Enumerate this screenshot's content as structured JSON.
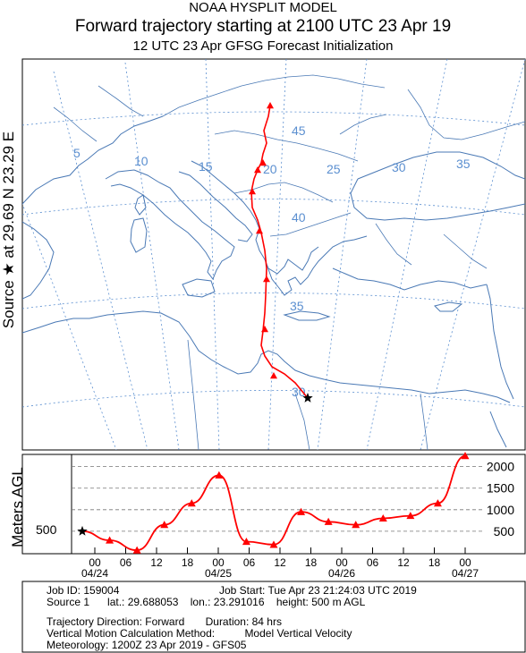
{
  "header": {
    "line1": "NOAA HYSPLIT MODEL",
    "line2": "Forward trajectory starting at 2100 UTC 23 Apr 19",
    "line3": "12 UTC 23 Apr    GFSG  Forecast Initialization"
  },
  "side_label": "Source ★  at   29.69 N   23.29 E",
  "altitude_axis_label": "Meters AGL",
  "map": {
    "longitude_labels": [
      "5",
      "10",
      "15",
      "20",
      "25",
      "30",
      "35"
    ],
    "latitude_labels": [
      "45",
      "40",
      "35",
      "30"
    ],
    "colors": {
      "trajectory": "#ff0000",
      "graticule": "#5b8fd0",
      "coastline": "#4a79b5"
    }
  },
  "chart_data": {
    "type": "line",
    "title": "",
    "xlabel": "",
    "ylabel": "Meters AGL",
    "source_height_label": "500",
    "y_tick_labels": [
      "2000",
      "1500",
      "1000",
      "500"
    ],
    "ylim": [
      0,
      2200
    ],
    "x_tick_labels": [
      "00",
      "06",
      "12",
      "18",
      "00",
      "06",
      "12",
      "18",
      "00",
      "06",
      "12",
      "18",
      "00"
    ],
    "date_labels": [
      "04/24",
      "04/25",
      "04/26",
      "04/27"
    ],
    "series": [
      {
        "hours_after_start": [
          0,
          6,
          12,
          18,
          24,
          30,
          36,
          42,
          48,
          54,
          60,
          66,
          72,
          78,
          84
        ],
        "height_m_agl": [
          500,
          290,
          60,
          650,
          1150,
          1800,
          260,
          190,
          950,
          720,
          650,
          800,
          860,
          1150,
          2250
        ]
      }
    ],
    "start_marker": "star",
    "hourly_marker": "triangle"
  },
  "info": {
    "job_id": "Job ID: 159004",
    "job_start": "Job Start: Tue Apr 23 21:24:03 UTC 2019",
    "source": "Source 1      lat.: 29.688053    lon.: 23.291016    height: 500 m AGL",
    "direction": "Trajectory Direction: Forward       Duration: 84 hrs",
    "vertical": "Vertical Motion Calculation Method:          Model Vertical Velocity",
    "meteorology": "Meteorology: 1200Z 23 Apr 2019 - GFS05"
  }
}
